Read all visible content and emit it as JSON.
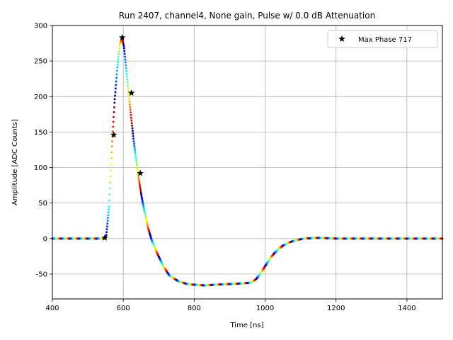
{
  "chart_data": {
    "type": "scatter",
    "title": "Run 2407, channel4, None gain, Pulse w/ 0.0 dB Attenuation",
    "xlabel": "Time [ns]",
    "ylabel": "Amplitude [ADC Counts]",
    "xlim": [
      400,
      1500
    ],
    "ylim": [
      -85,
      300
    ],
    "xticks": [
      400,
      600,
      800,
      1000,
      1200,
      1400
    ],
    "yticks": [
      -50,
      0,
      50,
      100,
      150,
      200,
      250,
      300
    ],
    "grid": true,
    "legend_position": "top-right",
    "colormap": "jet",
    "waveform_samples": {
      "x": [
        400,
        450,
        500,
        545,
        552,
        560,
        568,
        575,
        583,
        590,
        597,
        602,
        608,
        615,
        622,
        630,
        638,
        645,
        652,
        660,
        670,
        680,
        695,
        712,
        730,
        755,
        780,
        800,
        830,
        860,
        900,
        940,
        960,
        975,
        990,
        1005,
        1020,
        1035,
        1050,
        1070,
        1090,
        1110,
        1150,
        1200,
        1300,
        1400,
        1500
      ],
      "y": [
        0,
        0,
        0,
        0,
        5,
        45,
        130,
        190,
        240,
        273,
        282,
        270,
        240,
        205,
        172,
        135,
        105,
        80,
        58,
        38,
        15,
        -2,
        -20,
        -38,
        -52,
        -60,
        -64,
        -65,
        -66,
        -65,
        -64,
        -63,
        -62,
        -57,
        -47,
        -35,
        -24,
        -16,
        -10,
        -5,
        -2,
        0,
        1,
        0,
        0,
        0,
        0
      ]
    },
    "max_phase_markers": {
      "name": "Max Phase 717",
      "x": [
        548,
        573,
        597,
        623,
        648
      ],
      "y": [
        1,
        146,
        283,
        205,
        92
      ]
    },
    "colors": {
      "marker": "#000000",
      "grid": "#b0b0b0",
      "axes": "#000000",
      "legend_border": "#cccccc"
    }
  }
}
